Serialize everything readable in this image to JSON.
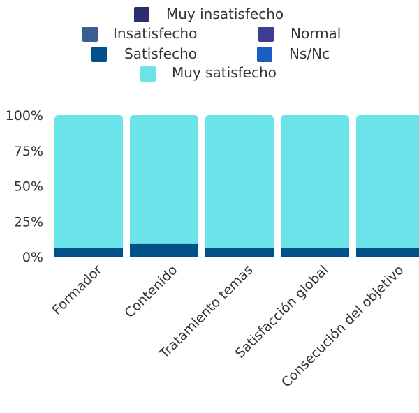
{
  "chart_data": {
    "type": "bar",
    "stacked": true,
    "normalized": true,
    "categories": [
      "Formador",
      "Contenido",
      "Tratamiento temas",
      "Satisfacción global",
      "Consecución del objetivo"
    ],
    "series": [
      {
        "name": "Muy insatisfecho",
        "color": "#2c2f6b",
        "values": [
          0,
          0,
          0,
          0,
          0
        ]
      },
      {
        "name": "Insatisfecho",
        "color": "#3b5f8f",
        "values": [
          0,
          0,
          0,
          0,
          0
        ]
      },
      {
        "name": "Normal",
        "color": "#3f3d8f",
        "values": [
          0,
          0,
          0,
          0,
          0
        ]
      },
      {
        "name": "Satisfecho",
        "color": "#00508a",
        "values": [
          6,
          9,
          6,
          6,
          6
        ]
      },
      {
        "name": "Ns/Nc",
        "color": "#1b5fc1",
        "values": [
          0,
          0,
          0,
          0,
          0
        ]
      },
      {
        "name": "Muy satisfecho",
        "color": "#6ae4e9",
        "values": [
          94,
          91,
          94,
          94,
          94
        ]
      }
    ],
    "yticks": [
      "0%",
      "25%",
      "50%",
      "75%",
      "100%"
    ],
    "ylim": [
      0,
      100
    ],
    "legend_position": "top",
    "grid": false
  }
}
